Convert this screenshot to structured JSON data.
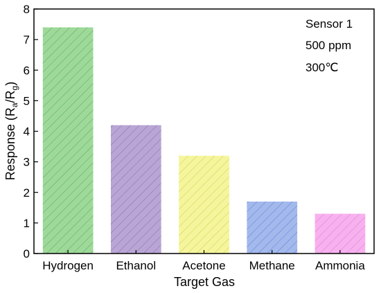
{
  "chart_data": {
    "type": "bar",
    "categories": [
      "Hydrogen",
      "Ethanol",
      "Acetone",
      "Methane",
      "Ammonia"
    ],
    "values": [
      7.4,
      4.2,
      3.2,
      1.7,
      1.3
    ],
    "colors": [
      "#9ed99a",
      "#b9a6d4",
      "#f5f59d",
      "#a3b9ec",
      "#f7b1ee"
    ],
    "stroke_colors": [
      "#4fae55",
      "#8b6bb4",
      "#cfcf4a",
      "#5b7fd9",
      "#e07ad3"
    ],
    "xlabel": "Target Gas",
    "ylabel": {
      "base": "Response (R",
      "sub1": "a",
      "mid": "/R",
      "sub2": "g",
      "end": ")"
    },
    "ylim": [
      0,
      8
    ],
    "yticks": [
      0,
      1,
      2,
      3,
      4,
      5,
      6,
      7,
      8
    ],
    "annotations": [
      "Sensor 1",
      "500 ppm",
      "300℃"
    ],
    "pattern": "diagonal-hatch",
    "grid": false,
    "legend": "none"
  }
}
